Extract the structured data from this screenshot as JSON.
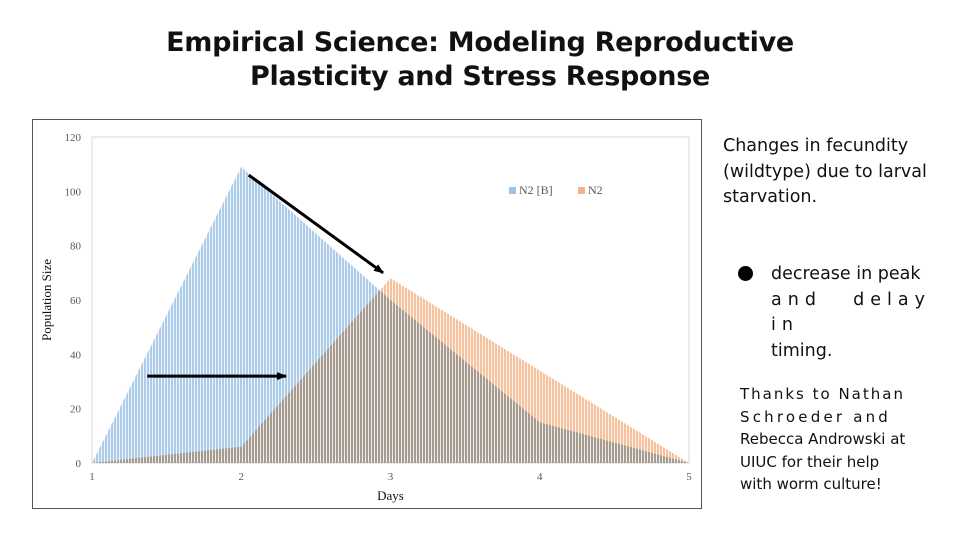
{
  "slide": {
    "title_line1": "Empirical Science: Modeling Reproductive",
    "title_line2": "Plasticity and Stress Response",
    "caption_line1": "Changes in fecundity",
    "caption_line2": "(wildtype) due to larval",
    "caption_line3": "starvation.",
    "bullet_line1": "decrease in peak",
    "bullet_line2": "and delay in",
    "bullet_line3": "timing.",
    "thanks_line1": "Thanks to Nathan",
    "thanks_line2": "Schroeder and",
    "thanks_line3": "Rebecca Androwski at",
    "thanks_line4": "UIUC for their help",
    "thanks_line5": "with worm culture!"
  },
  "chart_data": {
    "type": "area",
    "xlabel": "Days",
    "ylabel": "Population Size",
    "xlim": [
      1,
      5
    ],
    "ylim": [
      0,
      120
    ],
    "x_ticks": [
      1,
      2,
      3,
      4,
      5
    ],
    "y_ticks": [
      0,
      20,
      40,
      60,
      80,
      100,
      120
    ],
    "grid": false,
    "legend_position": "top-right",
    "series": [
      {
        "name": "N2 [B]",
        "color": "#9dc3e6",
        "x": [
          1,
          2,
          3,
          4,
          5
        ],
        "values": [
          0,
          109,
          60,
          15,
          0
        ]
      },
      {
        "name": "N2",
        "color": "#f4b183",
        "x": [
          1,
          2,
          3,
          4,
          5
        ],
        "values": [
          0,
          6,
          68,
          34,
          0
        ]
      }
    ],
    "annotations": [
      {
        "type": "arrow",
        "from": [
          2.05,
          106
        ],
        "to": [
          2.95,
          70
        ]
      },
      {
        "type": "arrow",
        "from": [
          1.37,
          32
        ],
        "to": [
          2.3,
          32
        ]
      }
    ]
  }
}
